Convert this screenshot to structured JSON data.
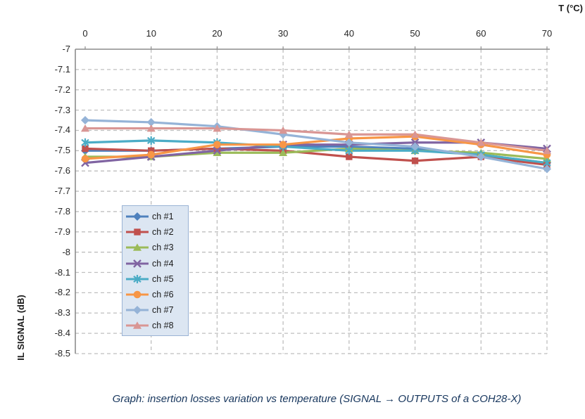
{
  "page": {
    "background": "#FFFFFF"
  },
  "chart_data": {
    "type": "line",
    "title": "",
    "xlabel": "T (°C)",
    "ylabel": "IL SIGNAL (dB)",
    "x": [
      0,
      10,
      20,
      30,
      40,
      50,
      60,
      70
    ],
    "x_tick_labels": [
      "0",
      "10",
      "20",
      "30",
      "40",
      "50",
      "60",
      "70"
    ],
    "ylim": [
      -8.5,
      -7
    ],
    "y_tick_step": 0.1,
    "y_tick_labels": [
      "-7",
      "-7.1",
      "-7.2",
      "-7.3",
      "-7.4",
      "-7.5",
      "-7.6",
      "-7.7",
      "-7.8",
      "-7.9",
      "-8",
      "-8.1",
      "-8.2",
      "-8.3",
      "-8.4",
      "-8.5"
    ],
    "grid": "dashed",
    "grid_color": "#BFBFBF",
    "axis_color": "#8C8C8C",
    "legend_position": "inside-left",
    "legend_fill": "#DCE6F2",
    "series": [
      {
        "name": "ch #1",
        "color": "#4F81BD",
        "marker": "diamond",
        "values": [
          -7.5,
          -7.5,
          -7.49,
          -7.48,
          -7.48,
          -7.49,
          -7.52,
          -7.56
        ]
      },
      {
        "name": "ch #2",
        "color": "#C0504D",
        "marker": "square",
        "values": [
          -7.49,
          -7.5,
          -7.49,
          -7.5,
          -7.53,
          -7.55,
          -7.53,
          -7.57
        ]
      },
      {
        "name": "ch #3",
        "color": "#9BBB59",
        "marker": "triangle",
        "values": [
          -7.53,
          -7.53,
          -7.51,
          -7.51,
          -7.49,
          -7.5,
          -7.51,
          -7.54
        ]
      },
      {
        "name": "ch #4",
        "color": "#8064A2",
        "marker": "x",
        "values": [
          -7.56,
          -7.53,
          -7.5,
          -7.47,
          -7.47,
          -7.46,
          -7.46,
          -7.49
        ]
      },
      {
        "name": "ch #5",
        "color": "#4BACC6",
        "marker": "asterisk",
        "values": [
          -7.46,
          -7.45,
          -7.46,
          -7.48,
          -7.5,
          -7.5,
          -7.52,
          -7.56
        ]
      },
      {
        "name": "ch #6",
        "color": "#F79646",
        "marker": "circle",
        "values": [
          -7.54,
          -7.52,
          -7.47,
          -7.47,
          -7.44,
          -7.43,
          -7.47,
          -7.52
        ]
      },
      {
        "name": "ch #7",
        "color": "#95B3D7",
        "marker": "diamond",
        "values": [
          -7.35,
          -7.36,
          -7.38,
          -7.42,
          -7.46,
          -7.48,
          -7.53,
          -7.59
        ]
      },
      {
        "name": "ch #8",
        "color": "#D99694",
        "marker": "triangle",
        "values": [
          -7.39,
          -7.39,
          -7.39,
          -7.4,
          -7.42,
          -7.42,
          -7.46,
          -7.5
        ]
      }
    ],
    "caption": "Graph: insertion losses variation vs temperature (SIGNAL → OUTPUTS of a COH28-X)"
  }
}
